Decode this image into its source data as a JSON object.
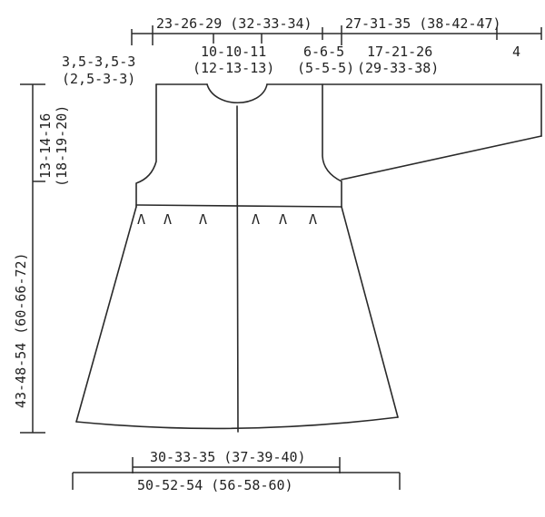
{
  "measurements": {
    "top_body_width": "23-26-29 (32-33-34)",
    "sleeve_length": "27-31-35 (38-42-47)",
    "shoulder_slope": "3,5-3,5-3",
    "shoulder_slope_large": "(2,5-3-3)",
    "neck_width": "10-10-11",
    "neck_width_large": "(12-13-13)",
    "shoulder_width": "6-6-5",
    "shoulder_width_large": "(5-5-5)",
    "sleeve_top": "17-21-26",
    "sleeve_top_large": "(29-33-38)",
    "cuff": "4",
    "armhole_depth": "13-14-16",
    "armhole_depth_large": "(18-19-20)",
    "total_length": "43-48-54 (60-66-72)",
    "chest_width": "30-33-35 (37-39-40)",
    "hem_width": "50-52-54 (56-58-60)"
  },
  "dart_mark": "Λ"
}
